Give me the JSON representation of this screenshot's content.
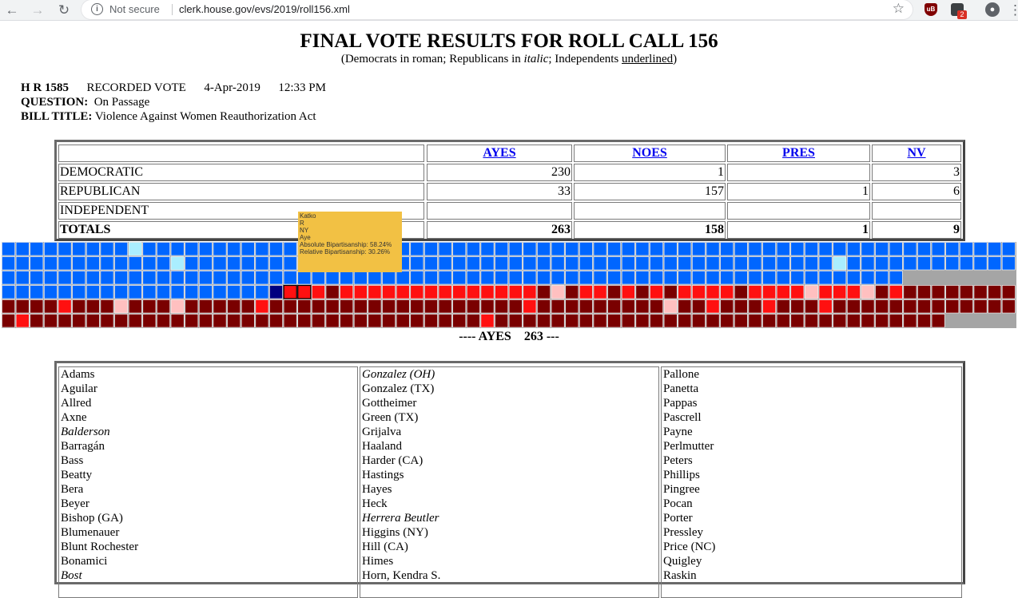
{
  "browser": {
    "security_label": "Not secure",
    "url": "clerk.house.gov/evs/2019/roll156.xml",
    "notification_count": "2"
  },
  "page": {
    "title": "FINAL VOTE RESULTS FOR ROLL CALL 156",
    "subtitle_prefix": "(Democrats in roman; Republicans in ",
    "subtitle_italic": "italic",
    "subtitle_middle": "; Independents ",
    "subtitle_underlined": "underlined",
    "subtitle_suffix": ")"
  },
  "vote_info": {
    "bill": "H R 1585",
    "vote_type": "RECORDED VOTE",
    "date": "4-Apr-2019",
    "time": "12:33 PM",
    "question_label": "QUESTION:",
    "question": "On Passage",
    "bill_title_label": "BILL TITLE:",
    "bill_title": "Violence Against Women Reauthorization Act"
  },
  "summary": {
    "headers": [
      "",
      "AYES",
      "NOES",
      "PRES",
      "NV"
    ],
    "rows": [
      {
        "party": "DEMOCRATIC",
        "ayes": "230",
        "noes": "1",
        "pres": "",
        "nv": "3"
      },
      {
        "party": "REPUBLICAN",
        "ayes": "33",
        "noes": "157",
        "pres": "1",
        "nv": "6"
      },
      {
        "party": "INDEPENDENT",
        "ayes": "",
        "noes": "",
        "pres": "",
        "nv": ""
      },
      {
        "party": "TOTALS",
        "ayes": "263",
        "noes": "158",
        "pres": "1",
        "nv": "9"
      }
    ]
  },
  "colors": {
    "dem_aye": "#0066ff",
    "dem_light": "#aaeeff",
    "dem_dark": "#000080",
    "rep_aye": "#ff1010",
    "rep_light": "#ffc0c0",
    "rep_no": "#7a0000",
    "empty": "#a5a5a5",
    "tooltip": "#f2c144"
  },
  "tooltip": {
    "lines": [
      "Katko",
      "R",
      "NY",
      "Aye",
      "Absolute Bipartisanship: 58.24%",
      "Relative Bipartisanship: 30.26%"
    ]
  },
  "ayes_heading": "---- AYES    263 ---",
  "ayes_names": [
    [
      {
        "n": "Adams"
      },
      {
        "n": "Aguilar"
      },
      {
        "n": "Allred"
      },
      {
        "n": "Axne"
      },
      {
        "n": "Balderson",
        "r": true
      },
      {
        "n": "Barragán"
      },
      {
        "n": "Bass"
      },
      {
        "n": "Beatty"
      },
      {
        "n": "Bera"
      },
      {
        "n": "Beyer"
      },
      {
        "n": "Bishop (GA)"
      },
      {
        "n": "Blumenauer"
      },
      {
        "n": "Blunt Rochester"
      },
      {
        "n": "Bonamici"
      },
      {
        "n": "Bost",
        "r": true
      }
    ],
    [
      {
        "n": "Gonzalez (OH)",
        "r": true
      },
      {
        "n": "Gonzalez (TX)"
      },
      {
        "n": "Gottheimer"
      },
      {
        "n": "Green (TX)"
      },
      {
        "n": "Grijalva"
      },
      {
        "n": "Haaland"
      },
      {
        "n": "Harder (CA)"
      },
      {
        "n": "Hastings"
      },
      {
        "n": "Hayes"
      },
      {
        "n": "Heck"
      },
      {
        "n": "Herrera Beutler",
        "r": true
      },
      {
        "n": "Higgins (NY)"
      },
      {
        "n": "Hill (CA)"
      },
      {
        "n": "Himes"
      },
      {
        "n": "Horn, Kendra S."
      }
    ],
    [
      {
        "n": "Pallone"
      },
      {
        "n": "Panetta"
      },
      {
        "n": "Pappas"
      },
      {
        "n": "Pascrell"
      },
      {
        "n": "Payne"
      },
      {
        "n": "Perlmutter"
      },
      {
        "n": "Peters"
      },
      {
        "n": "Phillips"
      },
      {
        "n": "Pingree"
      },
      {
        "n": "Pocan"
      },
      {
        "n": "Porter"
      },
      {
        "n": "Pressley"
      },
      {
        "n": "Price (NC)"
      },
      {
        "n": "Quigley"
      },
      {
        "n": "Raskin"
      }
    ]
  ]
}
